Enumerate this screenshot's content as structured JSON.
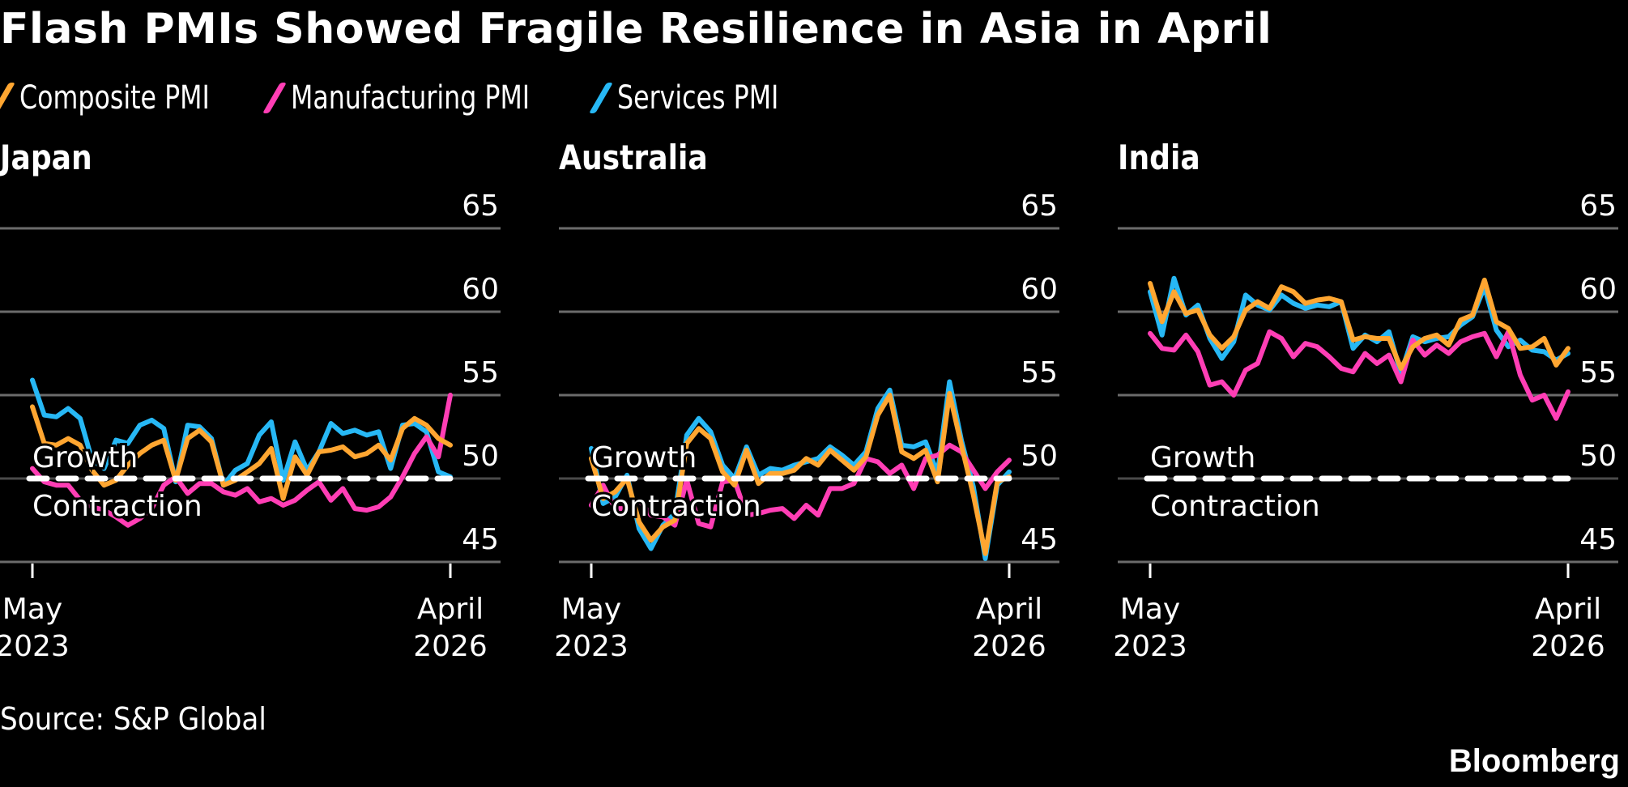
{
  "title": "Flash PMIs Showed Fragile Resilience in Asia in April",
  "legend": [
    {
      "label": "Composite PMI",
      "color": "#FFA631",
      "key": "composite"
    },
    {
      "label": "Manufacturing PMI",
      "color": "#FF3EB5",
      "key": "manufacturing"
    },
    {
      "label": "Services PMI",
      "color": "#27B8F5",
      "key": "services"
    }
  ],
  "source": "Source: S&P Global",
  "brand": "Bloomberg",
  "chart_data": [
    {
      "type": "line",
      "title": "Japan",
      "x_start": "May 2023",
      "x_end": "April 2026",
      "x_tick_labels": [
        [
          "May",
          "2023"
        ],
        [
          "April",
          "2026"
        ]
      ],
      "y_ticks": [
        45,
        50,
        55,
        60,
        65
      ],
      "ylim": [
        45,
        65
      ],
      "reference_line": {
        "value": 50,
        "above_label": "Growth",
        "below_label": "Contraction"
      },
      "grid": true,
      "series": [
        {
          "name": "Composite PMI",
          "key": "composite",
          "values": [
            54.3,
            52.1,
            52.0,
            52.4,
            52.0,
            50.5,
            49.6,
            49.9,
            50.8,
            51.5,
            52.0,
            52.3,
            49.9,
            52.4,
            52.9,
            52.2,
            49.6,
            49.9,
            50.4,
            50.9,
            51.8,
            48.8,
            51.3,
            50.2,
            51.6,
            51.7,
            51.9,
            51.3,
            51.5,
            52.0,
            51.1,
            53.0,
            53.6,
            53.2,
            52.4,
            52.0
          ]
        },
        {
          "name": "Manufacturing PMI",
          "key": "manufacturing",
          "values": [
            50.6,
            49.8,
            49.6,
            49.6,
            48.7,
            48.3,
            48.1,
            47.7,
            47.2,
            47.6,
            48.2,
            49.6,
            50.1,
            49.1,
            49.7,
            49.7,
            49.2,
            49.0,
            49.4,
            48.6,
            48.8,
            48.4,
            48.7,
            49.3,
            49.8,
            48.7,
            49.4,
            48.2,
            48.1,
            48.3,
            48.9,
            50.1,
            51.5,
            52.5,
            51.3,
            55.0
          ]
        },
        {
          "name": "Services PMI",
          "key": "services",
          "values": [
            55.9,
            53.8,
            53.7,
            54.2,
            53.6,
            51.1,
            50.6,
            52.3,
            52.1,
            53.2,
            53.5,
            53.0,
            49.8,
            53.2,
            53.1,
            52.4,
            49.6,
            50.5,
            50.9,
            52.6,
            53.4,
            49.9,
            52.2,
            50.5,
            51.6,
            53.3,
            52.7,
            52.9,
            52.6,
            52.8,
            50.6,
            53.2,
            53.3,
            52.8,
            50.4,
            50.1
          ]
        }
      ]
    },
    {
      "type": "line",
      "title": "Australia",
      "x_start": "May 2023",
      "x_end": "April 2026",
      "x_tick_labels": [
        [
          "May",
          "2023"
        ],
        [
          "April",
          "2026"
        ]
      ],
      "y_ticks": [
        45,
        50,
        55,
        60,
        65
      ],
      "ylim": [
        45,
        65
      ],
      "reference_line": {
        "value": 50,
        "above_label": "Growth",
        "below_label": "Contraction"
      },
      "grid": true,
      "series": [
        {
          "name": "Composite PMI",
          "key": "composite",
          "values": [
            51.2,
            48.8,
            49.2,
            50.0,
            47.4,
            46.3,
            47.1,
            47.5,
            52.1,
            53.0,
            52.4,
            50.4,
            49.6,
            51.7,
            49.7,
            50.3,
            50.3,
            50.5,
            51.2,
            50.8,
            51.7,
            51.1,
            50.5,
            51.3,
            53.8,
            55.0,
            51.6,
            51.2,
            51.7,
            49.8,
            55.1,
            52.0,
            49.0,
            45.5,
            49.8,
            50.1
          ]
        },
        {
          "name": "Manufacturing PMI",
          "key": "manufacturing",
          "values": [
            48.4,
            49.6,
            48.2,
            48.2,
            48.7,
            47.8,
            47.7,
            47.2,
            49.9,
            47.3,
            47.1,
            49.8,
            49.9,
            47.8,
            47.9,
            48.1,
            48.2,
            47.6,
            48.4,
            47.8,
            49.4,
            49.4,
            49.7,
            51.2,
            51.0,
            50.3,
            50.8,
            49.4,
            51.2,
            51.4,
            52.0,
            51.6,
            50.5,
            49.4,
            50.4,
            51.1
          ]
        },
        {
          "name": "Services PMI",
          "key": "services",
          "values": [
            51.8,
            48.5,
            48.9,
            50.2,
            47.0,
            45.8,
            47.2,
            47.9,
            52.6,
            53.6,
            52.8,
            50.8,
            50.0,
            51.9,
            50.2,
            50.6,
            50.5,
            50.8,
            51.0,
            51.2,
            51.9,
            51.4,
            50.8,
            51.6,
            54.2,
            55.3,
            52.0,
            51.9,
            52.2,
            50.3,
            55.8,
            52.3,
            49.5,
            45.2,
            49.6,
            50.4
          ]
        }
      ]
    },
    {
      "type": "line",
      "title": "India",
      "x_start": "May 2023",
      "x_end": "April 2026",
      "x_tick_labels": [
        [
          "May",
          "2023"
        ],
        [
          "April",
          "2026"
        ]
      ],
      "y_ticks": [
        45,
        50,
        55,
        60,
        65
      ],
      "ylim": [
        45,
        65
      ],
      "reference_line": {
        "value": 50,
        "above_label": "Growth",
        "below_label": "Contraction"
      },
      "grid": true,
      "series": [
        {
          "name": "Composite PMI",
          "key": "composite",
          "values": [
            61.7,
            59.4,
            61.2,
            59.9,
            60.1,
            58.6,
            57.8,
            58.5,
            60.1,
            60.6,
            60.2,
            61.5,
            61.2,
            60.5,
            60.7,
            60.8,
            60.6,
            58.3,
            58.5,
            58.4,
            58.4,
            56.6,
            57.9,
            58.4,
            58.6,
            58.0,
            59.5,
            59.8,
            61.9,
            59.4,
            59.0,
            57.8,
            57.9,
            58.4,
            56.8,
            57.8
          ]
        },
        {
          "name": "Manufacturing PMI",
          "key": "manufacturing",
          "values": [
            58.7,
            57.8,
            57.7,
            58.6,
            57.6,
            55.6,
            55.8,
            55.0,
            56.5,
            56.9,
            58.8,
            58.4,
            57.3,
            58.1,
            57.9,
            57.3,
            56.6,
            56.4,
            57.5,
            56.9,
            57.4,
            55.8,
            58.3,
            57.4,
            58.0,
            57.5,
            58.2,
            58.5,
            58.7,
            57.3,
            58.8,
            56.2,
            54.7,
            55.0,
            53.6,
            55.2
          ]
        },
        {
          "name": "Services PMI",
          "key": "services",
          "values": [
            61.2,
            58.6,
            62.0,
            59.8,
            60.4,
            58.4,
            57.2,
            58.2,
            61.0,
            60.4,
            60.1,
            61.0,
            60.5,
            60.2,
            60.4,
            60.3,
            60.6,
            57.8,
            58.6,
            58.2,
            58.8,
            56.3,
            58.5,
            58.2,
            58.4,
            58.5,
            59.2,
            59.7,
            61.5,
            58.9,
            57.9,
            58.3,
            57.7,
            57.6,
            57.1,
            57.5
          ]
        }
      ]
    }
  ]
}
